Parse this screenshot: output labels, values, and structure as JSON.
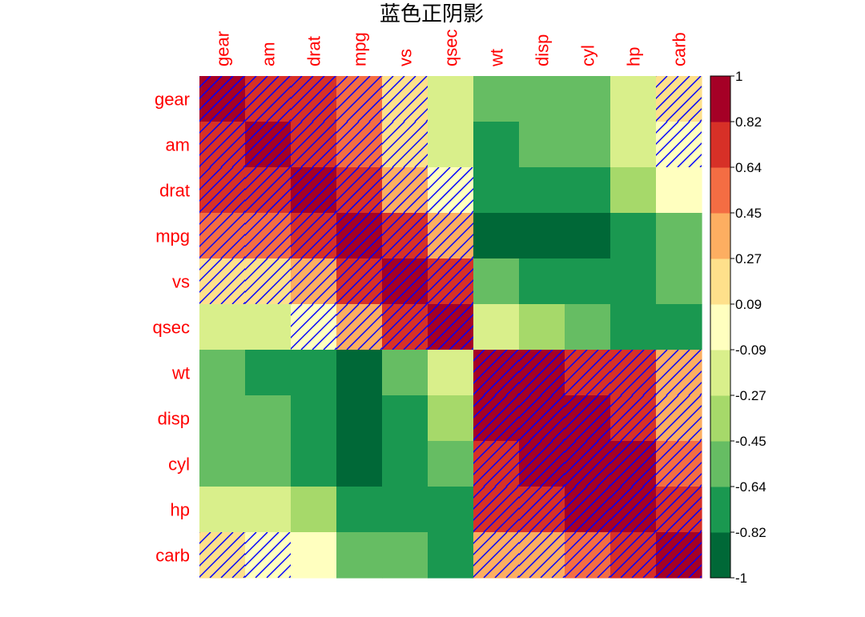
{
  "chart_data": {
    "type": "heatmap",
    "title": "蓝色正阴影",
    "variables": [
      "gear",
      "am",
      "drat",
      "mpg",
      "vs",
      "qsec",
      "wt",
      "disp",
      "cyl",
      "hp",
      "carb"
    ],
    "correlation_matrix": [
      [
        1.0,
        0.79,
        0.7,
        0.48,
        0.21,
        -0.21,
        -0.58,
        -0.56,
        -0.49,
        -0.13,
        0.27
      ],
      [
        0.79,
        1.0,
        0.71,
        0.6,
        0.17,
        -0.23,
        -0.69,
        -0.59,
        -0.52,
        -0.24,
        0.06
      ],
      [
        0.7,
        0.71,
        1.0,
        0.68,
        0.44,
        0.09,
        -0.71,
        -0.71,
        -0.7,
        -0.45,
        -0.09
      ],
      [
        0.48,
        0.6,
        0.68,
        1.0,
        0.66,
        0.42,
        -0.87,
        -0.85,
        -0.85,
        -0.78,
        -0.55
      ],
      [
        0.21,
        0.17,
        0.44,
        0.66,
        1.0,
        0.74,
        -0.55,
        -0.71,
        -0.81,
        -0.72,
        -0.57
      ],
      [
        -0.21,
        -0.23,
        0.09,
        0.42,
        0.74,
        1.0,
        -0.17,
        -0.43,
        -0.59,
        -0.71,
        -0.66
      ],
      [
        -0.58,
        -0.69,
        -0.71,
        -0.87,
        -0.55,
        -0.17,
        1.0,
        0.89,
        0.78,
        0.66,
        0.43
      ],
      [
        -0.56,
        -0.59,
        -0.71,
        -0.85,
        -0.71,
        -0.43,
        0.89,
        1.0,
        0.9,
        0.79,
        0.39
      ],
      [
        -0.49,
        -0.52,
        -0.7,
        -0.85,
        -0.81,
        -0.59,
        0.78,
        0.9,
        1.0,
        0.83,
        0.53
      ],
      [
        -0.13,
        -0.24,
        -0.45,
        -0.78,
        -0.72,
        -0.71,
        0.66,
        0.79,
        0.83,
        1.0,
        0.75
      ],
      [
        0.27,
        0.06,
        -0.09,
        -0.55,
        -0.57,
        -0.66,
        0.43,
        0.39,
        0.53,
        0.75,
        1.0
      ]
    ],
    "range": [
      -1,
      1
    ],
    "colorbar_ticks": [
      "1",
      "0.82",
      "0.64",
      "0.45",
      "0.27",
      "0.09",
      "-0.09",
      "-0.27",
      "-0.45",
      "-0.64",
      "-0.82",
      "-1"
    ],
    "colorbar_colors": [
      "#006837",
      "#1a9850",
      "#66bd63",
      "#a6d96a",
      "#d9ef8b",
      "#ffffbf",
      "#fee08b",
      "#fdae61",
      "#f46d43",
      "#d73027",
      "#a50026"
    ],
    "label_color": "#ff0000",
    "shade_color": "#0000ff",
    "shade_positive": true,
    "legend_position": "right"
  }
}
